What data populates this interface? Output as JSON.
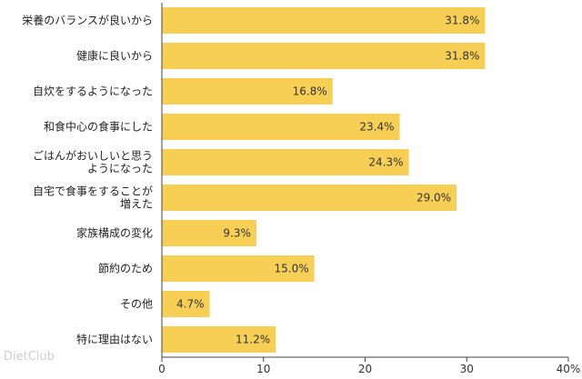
{
  "chart_data": {
    "type": "bar",
    "orientation": "horizontal",
    "categories": [
      "栄養のバランスが良いから",
      "健康に良いから",
      "自炊をするようになった",
      "和食中心の食事にした",
      "ごはんがおいしいと思う\nようになった",
      "自宅で食事をすることが\n増えた",
      "家族構成の変化",
      "節約のため",
      "その他",
      "特に理由はない"
    ],
    "values": [
      31.8,
      31.8,
      16.8,
      23.4,
      24.3,
      29.0,
      9.3,
      15.0,
      4.7,
      11.2
    ],
    "value_labels": [
      "31.8%",
      "31.8%",
      "16.8%",
      "23.4%",
      "24.3%",
      "29.0%",
      "9.3%",
      "15.0%",
      "4.7%",
      "11.2%"
    ],
    "x_ticks": [
      0,
      10,
      20,
      30,
      40
    ],
    "x_tick_labels": [
      "0",
      "10",
      "20",
      "30",
      "40%"
    ],
    "xlim": [
      0,
      40
    ],
    "grid": false,
    "bar_color": "#f7cf55"
  },
  "watermark": "DietClub"
}
